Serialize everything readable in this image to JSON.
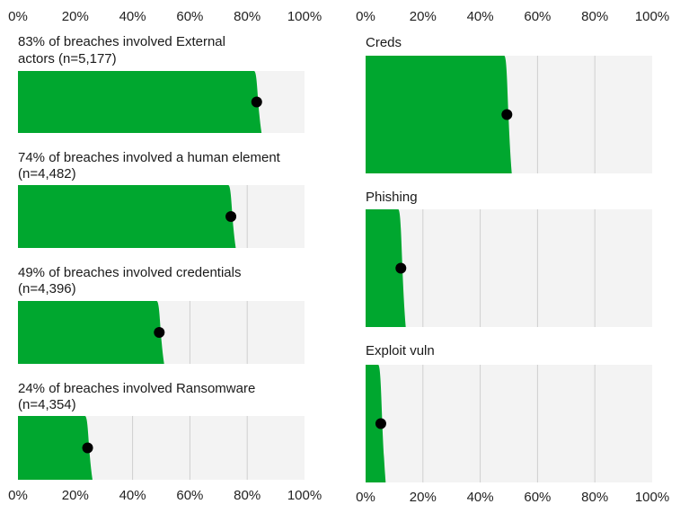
{
  "colors": {
    "bar": "#00a72f",
    "track": "#f3f3f3",
    "grid": "#cfcfcf",
    "marker": "#000000"
  },
  "chart_data": [
    {
      "type": "bar",
      "orientation": "horizontal",
      "xlim": [
        0,
        100
      ],
      "x_tick_labels": [
        "0%",
        "20%",
        "40%",
        "60%",
        "80%",
        "100%"
      ],
      "x_axis_position": "top and bottom",
      "panels": [
        {
          "title_lines": [
            "83% of breaches involved External",
            "actors (n=5,177)"
          ],
          "value": 83
        },
        {
          "title_lines": [
            "74% of breaches involved a human element",
            "(n=4,482)"
          ],
          "value": 74
        },
        {
          "title_lines": [
            "49% of breaches involved credentials",
            "(n=4,396)"
          ],
          "value": 49
        },
        {
          "title_lines": [
            "24% of breaches involved Ransomware",
            "(n=4,354)"
          ],
          "value": 24
        }
      ]
    },
    {
      "type": "bar",
      "orientation": "horizontal",
      "xlim": [
        0,
        100
      ],
      "x_tick_labels": [
        "0%",
        "20%",
        "40%",
        "60%",
        "80%",
        "100%"
      ],
      "x_axis_position": "top and bottom",
      "panels": [
        {
          "title_lines": [
            "Creds"
          ],
          "value": 49
        },
        {
          "title_lines": [
            "Phishing"
          ],
          "value": 12
        },
        {
          "title_lines": [
            "Exploit vuln"
          ],
          "value": 5
        }
      ]
    }
  ]
}
